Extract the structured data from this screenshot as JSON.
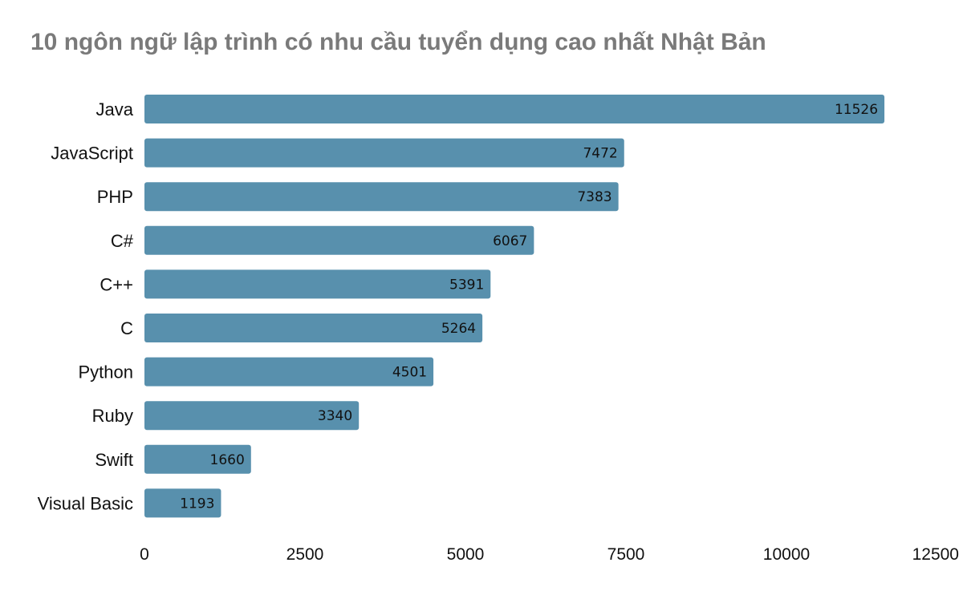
{
  "chart_data": {
    "type": "bar",
    "orientation": "horizontal",
    "title": "10 ngôn ngữ lập trình có nhu cầu tuyển dụng cao nhất Nhật Bản",
    "categories": [
      "Java",
      "JavaScript",
      "PHP",
      "C#",
      "C++",
      "C",
      "Python",
      "Ruby",
      "Swift",
      "Visual Basic"
    ],
    "values": [
      11526,
      7472,
      7383,
      6067,
      5391,
      5264,
      4501,
      3340,
      1660,
      1193
    ],
    "value_labels": [
      "11526",
      "7472",
      "7383",
      "6067",
      "5391",
      "5264",
      "4501",
      "3340",
      "1660",
      "1193"
    ],
    "x_ticks": [
      0,
      2500,
      5000,
      7500,
      10000,
      12500
    ],
    "x_tick_labels": [
      "0",
      "2500",
      "5000",
      "7500",
      "10000",
      "12500"
    ],
    "xlim": [
      0,
      12500
    ],
    "xlabel": "",
    "ylabel": "",
    "grid": false,
    "legend": "none",
    "colors": {
      "bar": "#5890ad",
      "title": "#7a7a7a",
      "text": "#111111"
    }
  }
}
